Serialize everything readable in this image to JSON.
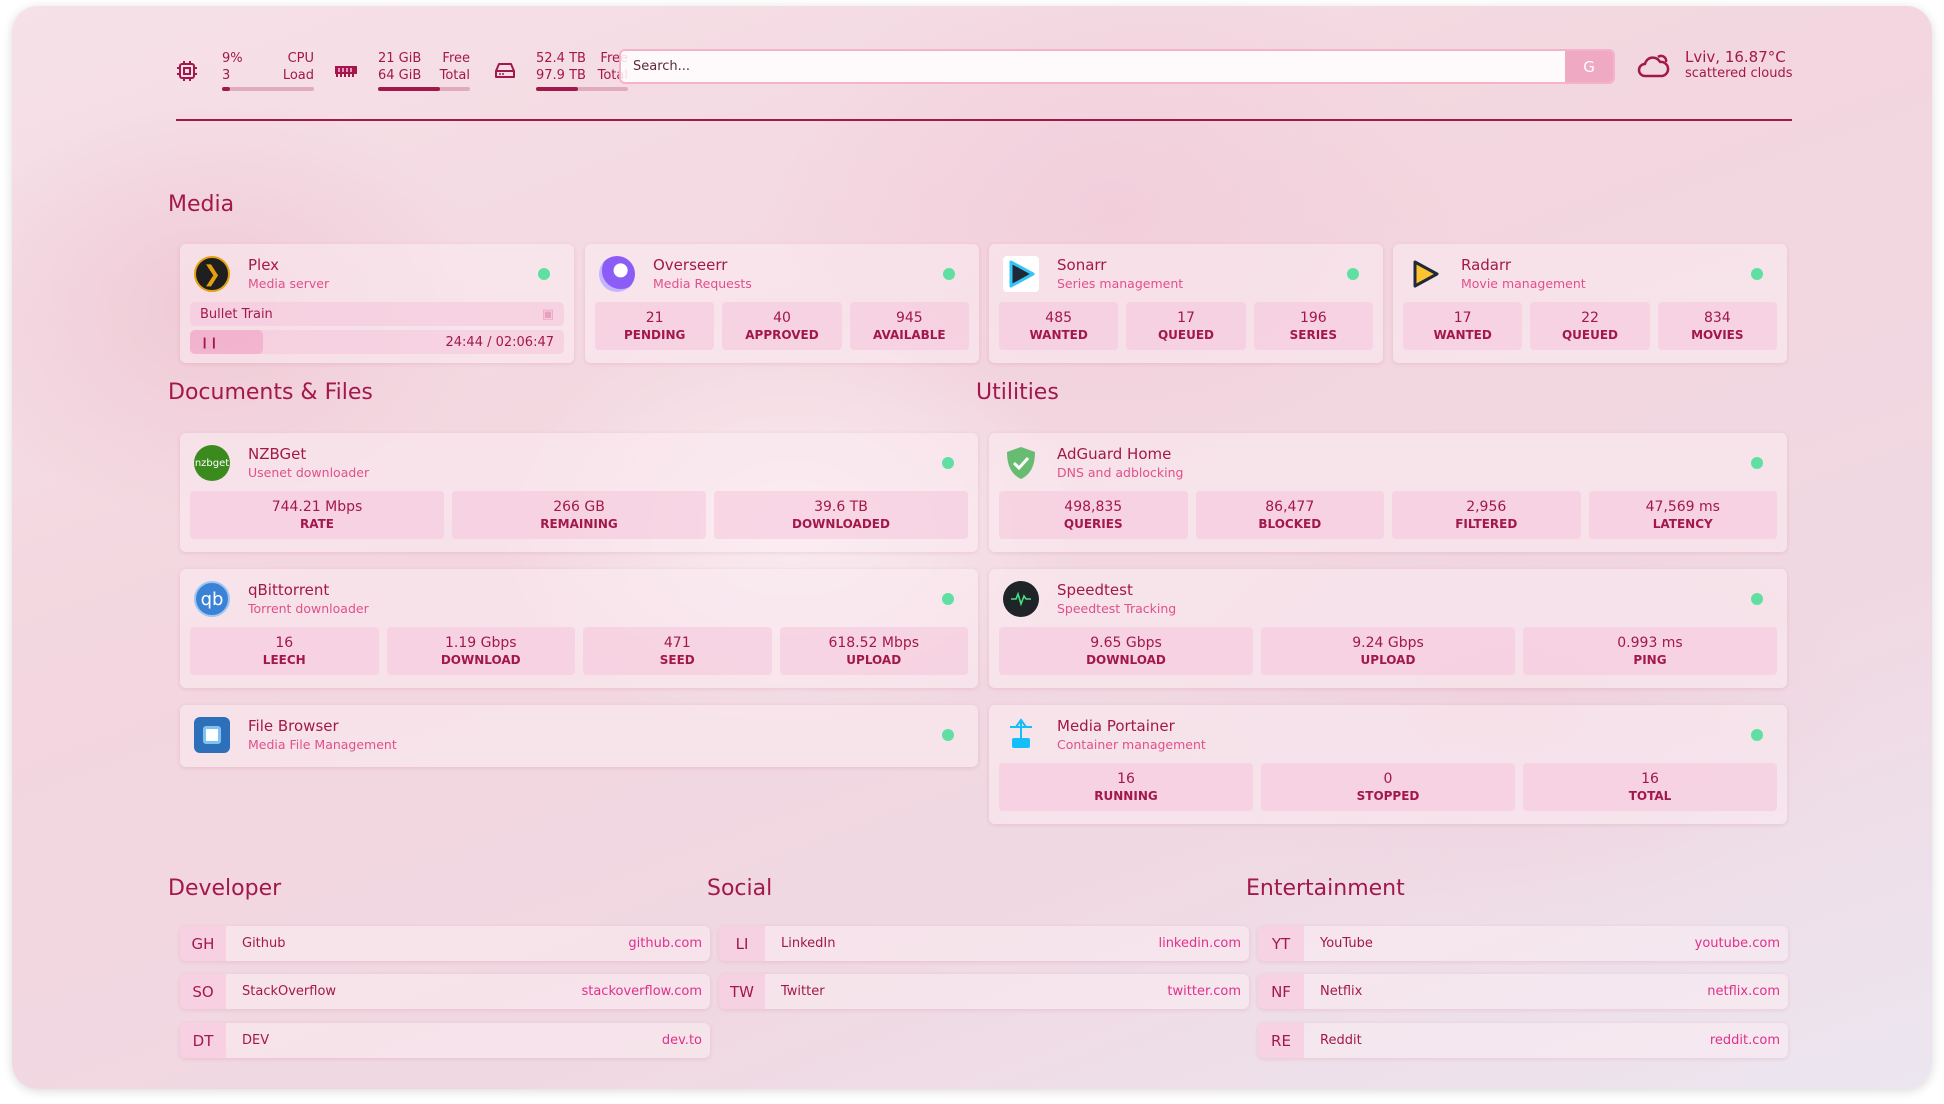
{
  "system": {
    "cpu": {
      "value": "9%",
      "label": "CPU",
      "value2": "3",
      "label2": "Load",
      "percent": 9
    },
    "memory": {
      "value": "21 GiB",
      "label": "Free",
      "value2": "64 GiB",
      "label2": "Total",
      "percent": 67
    },
    "disk": {
      "value": "52.4 TB",
      "label": "Free",
      "value2": "97.9 TB",
      "label2": "Total",
      "percent": 46
    }
  },
  "search": {
    "placeholder": "Search...",
    "engine_label": "G"
  },
  "weather": {
    "location_temp": "Lviv, 16.87°C",
    "condition": "scattered clouds",
    "icon": "cloud-sun-icon"
  },
  "colors": {
    "accent": "#a3184a",
    "subtitle": "#e0508a",
    "status_ok": "#5fe0a2"
  },
  "sections": {
    "media": "Media",
    "documents": "Documents & Files",
    "utilities": "Utilities",
    "developer": "Developer",
    "social": "Social",
    "entertainment": "Entertainment"
  },
  "media": [
    {
      "name": "Plex",
      "sub": "Media server",
      "icon": "plex-icon",
      "now_playing": {
        "title": "Bullet Train",
        "time": "24:44 / 02:06:47",
        "progress": 0.195
      }
    },
    {
      "name": "Overseerr",
      "sub": "Media Requests",
      "icon": "overseerr-icon",
      "stats": [
        {
          "v": "21",
          "l": "PENDING"
        },
        {
          "v": "40",
          "l": "APPROVED"
        },
        {
          "v": "945",
          "l": "AVAILABLE"
        }
      ]
    },
    {
      "name": "Sonarr",
      "sub": "Series management",
      "icon": "sonarr-icon",
      "stats": [
        {
          "v": "485",
          "l": "WANTED"
        },
        {
          "v": "17",
          "l": "QUEUED"
        },
        {
          "v": "196",
          "l": "SERIES"
        }
      ]
    },
    {
      "name": "Radarr",
      "sub": "Movie management",
      "icon": "radarr-icon",
      "stats": [
        {
          "v": "17",
          "l": "WANTED"
        },
        {
          "v": "22",
          "l": "QUEUED"
        },
        {
          "v": "834",
          "l": "MOVIES"
        }
      ]
    }
  ],
  "documents": [
    {
      "name": "NZBGet",
      "sub": "Usenet downloader",
      "icon": "nzbget-icon",
      "icon_text": "nzbget",
      "stats": [
        {
          "v": "744.21 Mbps",
          "l": "RATE"
        },
        {
          "v": "266 GB",
          "l": "REMAINING"
        },
        {
          "v": "39.6 TB",
          "l": "DOWNLOADED"
        }
      ]
    },
    {
      "name": "qBittorrent",
      "sub": "Torrent downloader",
      "icon": "qbittorrent-icon",
      "icon_text": "qb",
      "stats": [
        {
          "v": "16",
          "l": "LEECH"
        },
        {
          "v": "1.19 Gbps",
          "l": "DOWNLOAD"
        },
        {
          "v": "471",
          "l": "SEED"
        },
        {
          "v": "618.52 Mbps",
          "l": "UPLOAD"
        }
      ]
    },
    {
      "name": "File Browser",
      "sub": "Media File Management",
      "icon": "file-browser-icon"
    }
  ],
  "utilities": [
    {
      "name": "AdGuard Home",
      "sub": "DNS and adblocking",
      "icon": "adguard-icon",
      "stats": [
        {
          "v": "498,835",
          "l": "QUERIES"
        },
        {
          "v": "86,477",
          "l": "BLOCKED"
        },
        {
          "v": "2,956",
          "l": "FILTERED"
        },
        {
          "v": "47,569 ms",
          "l": "LATENCY"
        }
      ]
    },
    {
      "name": "Speedtest",
      "sub": "Speedtest Tracking",
      "icon": "speedtest-icon",
      "stats": [
        {
          "v": "9.65 Gbps",
          "l": "DOWNLOAD"
        },
        {
          "v": "9.24 Gbps",
          "l": "UPLOAD"
        },
        {
          "v": "0.993 ms",
          "l": "PING"
        }
      ]
    },
    {
      "name": "Media Portainer",
      "sub": "Container management",
      "icon": "portainer-icon",
      "stats": [
        {
          "v": "16",
          "l": "RUNNING"
        },
        {
          "v": "0",
          "l": "STOPPED"
        },
        {
          "v": "16",
          "l": "TOTAL"
        }
      ]
    }
  ],
  "bookmarks": {
    "developer": [
      {
        "abbr": "GH",
        "name": "Github",
        "url": "github.com"
      },
      {
        "abbr": "SO",
        "name": "StackOverflow",
        "url": "stackoverflow.com"
      },
      {
        "abbr": "DT",
        "name": "DEV",
        "url": "dev.to"
      }
    ],
    "social": [
      {
        "abbr": "LI",
        "name": "LinkedIn",
        "url": "linkedin.com"
      },
      {
        "abbr": "TW",
        "name": "Twitter",
        "url": "twitter.com"
      }
    ],
    "entertainment": [
      {
        "abbr": "YT",
        "name": "YouTube",
        "url": "youtube.com"
      },
      {
        "abbr": "NF",
        "name": "Netflix",
        "url": "netflix.com"
      },
      {
        "abbr": "RE",
        "name": "Reddit",
        "url": "reddit.com"
      }
    ]
  }
}
